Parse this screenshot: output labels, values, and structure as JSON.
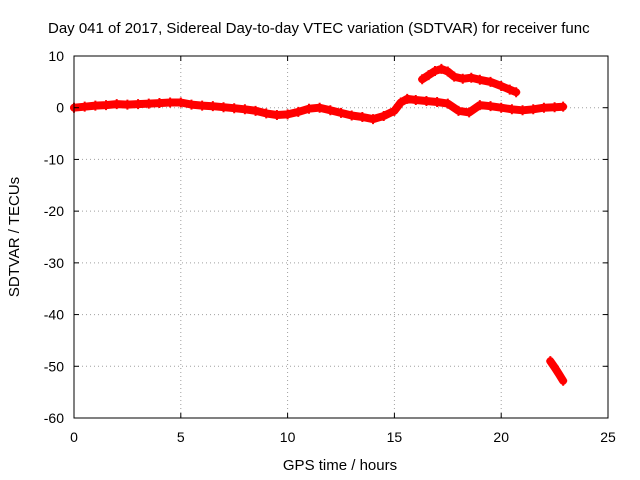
{
  "chart_data": {
    "type": "scatter",
    "title": "Day 041 of 2017, Sidereal Day-to-day VTEC variation (SDTVAR) for receiver func",
    "xlabel": "GPS time / hours",
    "ylabel": "SDTVAR / TECUs",
    "xlim": [
      0,
      25
    ],
    "ylim": [
      -60,
      10
    ],
    "xticks": [
      0,
      5,
      10,
      15,
      20,
      25
    ],
    "yticks": [
      10,
      0,
      -10,
      -20,
      -30,
      -40,
      -50,
      -60
    ],
    "xtick_labels": [
      "0",
      "5",
      "10",
      "15",
      "20",
      "25"
    ],
    "ytick_labels": [
      "10",
      "0",
      "-10",
      "-20",
      "-30",
      "-40",
      "-50",
      "-60"
    ],
    "grid": true,
    "color": "#ff0000",
    "series": [
      {
        "name": "main",
        "x": [
          0.0,
          0.5,
          1.0,
          1.5,
          2.0,
          2.5,
          3.0,
          3.5,
          4.0,
          4.5,
          5.0,
          5.5,
          6.0,
          6.5,
          7.0,
          7.5,
          8.0,
          8.5,
          9.0,
          9.5,
          10.0,
          10.5,
          11.0,
          11.5,
          12.0,
          12.5,
          13.0,
          13.5,
          14.0,
          14.5,
          15.0,
          15.3,
          15.6,
          16.0,
          16.5,
          17.0,
          17.5,
          18.0,
          18.5,
          19.0,
          19.5,
          20.0,
          20.5,
          21.0,
          21.5,
          22.0,
          22.5,
          22.9
        ],
        "y": [
          0.0,
          0.2,
          0.4,
          0.5,
          0.7,
          0.6,
          0.7,
          0.8,
          0.9,
          1.0,
          1.0,
          0.6,
          0.4,
          0.3,
          0.1,
          -0.1,
          -0.3,
          -0.6,
          -1.1,
          -1.4,
          -1.3,
          -0.8,
          -0.2,
          0.0,
          -0.5,
          -1.0,
          -1.5,
          -1.8,
          -2.2,
          -1.6,
          -0.6,
          1.0,
          1.7,
          1.5,
          1.3,
          1.1,
          0.8,
          -0.6,
          -0.9,
          0.5,
          0.3,
          0.0,
          -0.3,
          -0.5,
          -0.3,
          0.0,
          0.1,
          0.2
        ]
      },
      {
        "name": "upper-arc",
        "x": [
          16.3,
          16.6,
          16.9,
          17.2,
          17.5,
          17.8,
          18.2,
          18.6,
          19.0,
          19.5,
          20.0,
          20.4,
          20.7
        ],
        "y": [
          5.5,
          6.3,
          7.1,
          7.5,
          7.0,
          6.0,
          5.6,
          5.8,
          5.4,
          5.0,
          4.2,
          3.5,
          3.0
        ]
      },
      {
        "name": "lower-drop",
        "x": [
          22.3,
          22.5,
          22.7,
          22.9
        ],
        "y": [
          -49.0,
          -50.2,
          -51.5,
          -52.8
        ]
      }
    ]
  }
}
